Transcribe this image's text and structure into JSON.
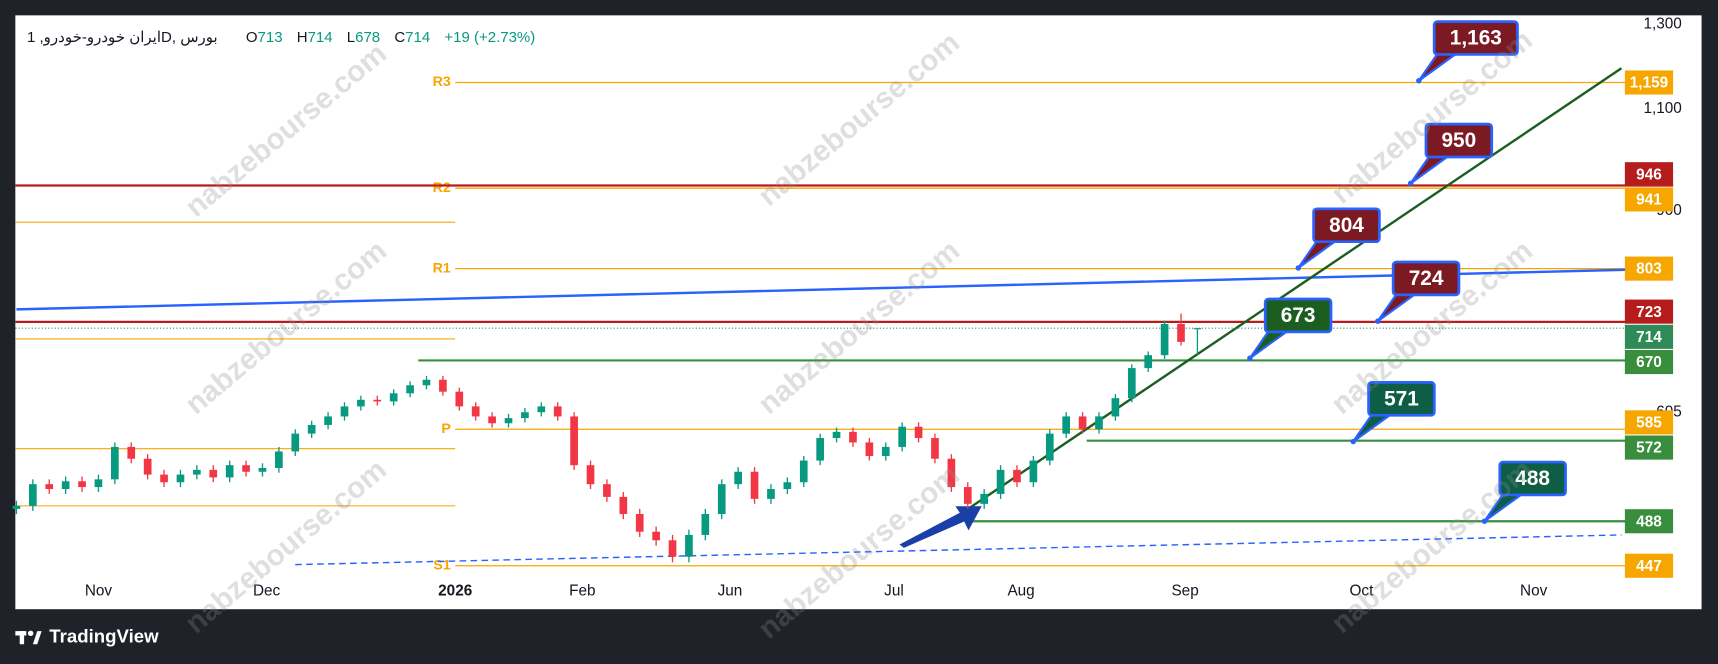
{
  "header": {
    "symbol": "ایران خودرو-خودرو, 1D, بورس",
    "ohlc": [
      {
        "label": "O",
        "value": 713
      },
      {
        "label": "H",
        "value": 714
      },
      {
        "label": "L",
        "value": 678
      },
      {
        "label": "C",
        "value": 714
      }
    ],
    "change": "+19 (+2.73%)"
  },
  "watermark": "nabzebourse.com",
  "brand": "TradingView",
  "chart_data": {
    "type": "candlestick",
    "x": [
      0,
      2,
      4,
      6,
      8,
      10,
      12,
      14,
      16,
      18,
      20,
      22,
      24,
      26,
      28,
      30,
      32,
      34,
      36,
      38,
      40,
      42,
      44,
      46,
      48,
      50,
      52,
      54,
      56,
      58,
      60,
      62,
      64,
      66,
      68,
      70,
      72,
      74,
      76,
      78,
      80,
      82,
      84,
      86,
      88,
      90,
      92,
      94,
      96,
      98,
      100,
      102,
      104,
      106,
      108,
      110,
      112,
      114,
      116,
      118,
      120,
      122,
      124,
      126,
      128,
      130,
      132,
      134,
      136,
      138,
      140,
      142,
      144
    ],
    "open": [
      500,
      503,
      525,
      520,
      528,
      522,
      530,
      565,
      552,
      535,
      527,
      535,
      540,
      532,
      545,
      538,
      542,
      560,
      580,
      590,
      600,
      612,
      620,
      618,
      628,
      638,
      645,
      630,
      612,
      600,
      592,
      598,
      605,
      612,
      600,
      545,
      525,
      512,
      495,
      478,
      470,
      455,
      475,
      495,
      525,
      538,
      510,
      520,
      527,
      550,
      575,
      582,
      570,
      555,
      565,
      588,
      575,
      552,
      522,
      505,
      515,
      540,
      527,
      550,
      580,
      600,
      585,
      600,
      622,
      660,
      677,
      720,
      713
    ],
    "high": [
      508,
      530,
      530,
      533,
      533,
      535,
      570,
      570,
      557,
      540,
      540,
      545,
      545,
      550,
      550,
      547,
      565,
      585,
      595,
      605,
      617,
      625,
      625,
      633,
      643,
      650,
      650,
      635,
      617,
      605,
      603,
      610,
      617,
      617,
      605,
      550,
      530,
      517,
      500,
      483,
      475,
      480,
      500,
      530,
      543,
      543,
      525,
      532,
      555,
      580,
      587,
      587,
      575,
      570,
      593,
      593,
      580,
      557,
      527,
      520,
      545,
      545,
      555,
      585,
      605,
      605,
      605,
      627,
      665,
      682,
      725,
      735,
      714
    ],
    "low": [
      495,
      498,
      515,
      515,
      517,
      517,
      525,
      547,
      530,
      522,
      522,
      530,
      527,
      527,
      533,
      533,
      537,
      555,
      575,
      585,
      595,
      607,
      613,
      613,
      623,
      633,
      625,
      607,
      595,
      587,
      587,
      593,
      600,
      595,
      540,
      520,
      507,
      490,
      473,
      465,
      450,
      450,
      470,
      490,
      520,
      505,
      505,
      515,
      522,
      545,
      570,
      565,
      550,
      550,
      560,
      570,
      547,
      517,
      500,
      500,
      510,
      522,
      522,
      545,
      575,
      580,
      580,
      595,
      617,
      655,
      672,
      690,
      678
    ],
    "close": [
      503,
      525,
      520,
      528,
      522,
      530,
      565,
      552,
      535,
      527,
      535,
      540,
      532,
      545,
      538,
      542,
      560,
      580,
      590,
      600,
      612,
      620,
      618,
      628,
      638,
      645,
      630,
      612,
      600,
      592,
      598,
      605,
      612,
      600,
      545,
      525,
      512,
      495,
      478,
      470,
      455,
      475,
      495,
      525,
      538,
      510,
      520,
      527,
      550,
      575,
      582,
      570,
      555,
      565,
      588,
      575,
      552,
      522,
      505,
      515,
      540,
      527,
      550,
      580,
      600,
      585,
      600,
      622,
      660,
      677,
      720,
      695,
      714
    ],
    "up_color": "#089981",
    "down_color": "#f23645",
    "xlim": [
      0,
      202
    ],
    "xticks": [
      {
        "value": 10,
        "label": "Nov"
      },
      {
        "value": 30.5,
        "label": "Dec"
      },
      {
        "value": 53.5,
        "label": "2026"
      },
      {
        "value": 69,
        "label": "Feb"
      },
      {
        "value": 87,
        "label": "Jun"
      },
      {
        "value": 107,
        "label": "Jul"
      },
      {
        "value": 122.5,
        "label": "Aug"
      },
      {
        "value": 142.5,
        "label": "Sep"
      },
      {
        "value": 164,
        "label": "Oct"
      },
      {
        "value": 185,
        "label": "Nov"
      }
    ],
    "ylim": [
      434,
      1323
    ],
    "yticks": [
      {
        "value": 1300,
        "label": "1,300"
      },
      {
        "value": 1100,
        "label": "1,100"
      },
      900,
      605
    ],
    "log_scale": true,
    "pivot_start": 53.5,
    "levels": [
      {
        "name": "R3",
        "value": 1159,
        "color": "#f7a600"
      },
      {
        "name": "R2",
        "value": 941,
        "color": "#f7a600"
      },
      {
        "name": "R1",
        "value": 803,
        "color": "#f7a600"
      },
      {
        "name": "P",
        "value": 585,
        "color": "#f7a600"
      },
      {
        "name": "S1",
        "value": 447,
        "color": "#f7a600"
      }
    ],
    "prior_levels": [
      880,
      699,
      563,
      503
    ],
    "horizontals": [
      {
        "value": 946,
        "color": "#b71c1c"
      },
      {
        "value": 723,
        "color": "#b71c1c"
      },
      {
        "value": 670,
        "color": "#388e3c",
        "from": 49
      },
      {
        "value": 572,
        "color": "#388e3c",
        "from": 130.5
      },
      {
        "value": 488,
        "color": "#388e3c",
        "from": 116
      }
    ],
    "trendlines": [
      {
        "color": "#2962ff",
        "style": "solid",
        "x": [
          0,
          202
        ],
        "y": [
          741,
          803
        ]
      },
      {
        "color": "#1b5e20",
        "style": "solid",
        "x": [
          115.3,
          195.7
        ],
        "y": [
          496,
          1192
        ]
      },
      {
        "color": "#2962ff",
        "style": "dashed",
        "x": [
          34,
          195.7
        ],
        "y": [
          448,
          475
        ]
      }
    ],
    "callouts": [
      {
        "label": "1,163",
        "value": 1163,
        "x": 171,
        "color": "#7b1a22"
      },
      {
        "value": 950,
        "x": 170,
        "color": "#7b1a22"
      },
      {
        "value": 804,
        "x": 156.3,
        "color": "#7b1a22"
      },
      {
        "value": 724,
        "x": 166,
        "color": "#7b1a22"
      },
      {
        "value": 673,
        "x": 150.4,
        "color": "#1b5e20"
      },
      {
        "value": 571,
        "x": 163,
        "color": "#0d5e45"
      },
      {
        "value": 488,
        "x": 179,
        "color": "#0d5e45"
      }
    ],
    "price_labels": [
      {
        "value": 1159,
        "label": "1,159",
        "color": "#f7a600"
      },
      {
        "value": 946,
        "color": "#b71c1c"
      },
      {
        "value": 941,
        "color": "#f7a600"
      },
      {
        "value": 803,
        "color": "#f7a600"
      },
      {
        "value": 723,
        "color": "#b71c1c"
      },
      {
        "value": 714,
        "color": "#2e8b57",
        "style": "dotted"
      },
      {
        "value": 670,
        "color": "#388e3c"
      },
      {
        "value": 585,
        "color": "#f7a600"
      },
      {
        "value": 572,
        "color": "#388e3c"
      },
      {
        "value": 488,
        "color": "#388e3c"
      },
      {
        "value": 447,
        "color": "#f7a600"
      }
    ]
  }
}
